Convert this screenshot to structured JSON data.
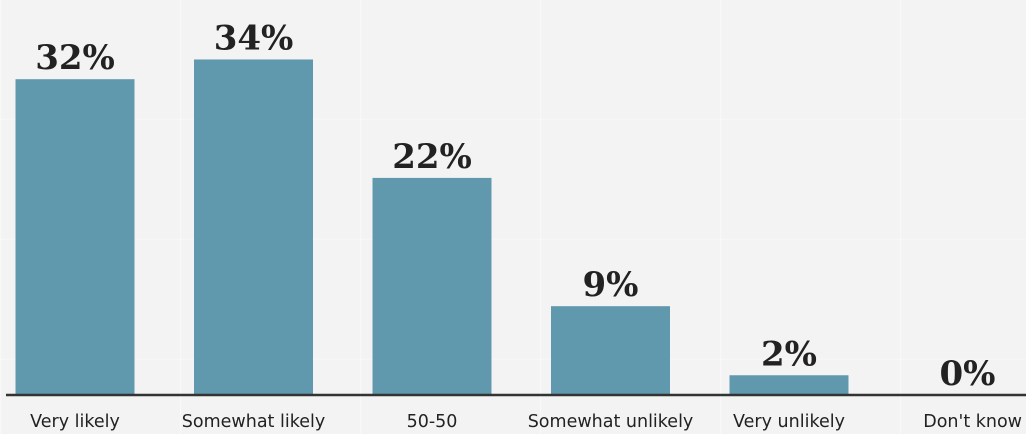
{
  "chart_data": {
    "type": "bar",
    "categories": [
      "Very likely",
      "Somewhat likely",
      "50-50",
      "Somewhat unlikely",
      "Very unlikely",
      "Don't know"
    ],
    "values": [
      32,
      34,
      22,
      9,
      2,
      0
    ],
    "data_labels": [
      "32%",
      "34%",
      "22%",
      "9%",
      "2%",
      "0%"
    ],
    "ylim": [
      0,
      38
    ],
    "bar_color": "#6098ad",
    "axis_color": "#333333",
    "grid": false,
    "title": "",
    "xlabel": "",
    "ylabel": ""
  }
}
